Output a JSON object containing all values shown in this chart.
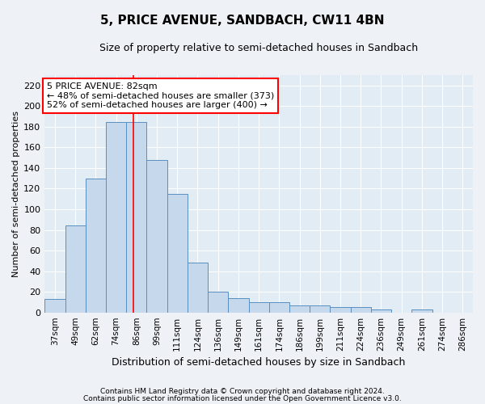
{
  "title": "5, PRICE AVENUE, SANDBACH, CW11 4BN",
  "subtitle": "Size of property relative to semi-detached houses in Sandbach",
  "xlabel": "Distribution of semi-detached houses by size in Sandbach",
  "ylabel": "Number of semi-detached properties",
  "categories": [
    "37sqm",
    "49sqm",
    "62sqm",
    "74sqm",
    "86sqm",
    "99sqm",
    "111sqm",
    "124sqm",
    "136sqm",
    "149sqm",
    "161sqm",
    "174sqm",
    "186sqm",
    "199sqm",
    "211sqm",
    "224sqm",
    "236sqm",
    "249sqm",
    "261sqm",
    "274sqm",
    "286sqm"
  ],
  "values": [
    13,
    84,
    130,
    185,
    185,
    148,
    115,
    48,
    20,
    14,
    10,
    10,
    7,
    7,
    5,
    5,
    3,
    0,
    3,
    0,
    0
  ],
  "bar_color": "#c5d8ec",
  "bar_edge_color": "#5a8fc0",
  "property_line_index": 4,
  "annotation_text": "5 PRICE AVENUE: 82sqm\n← 48% of semi-detached houses are smaller (373)\n52% of semi-detached houses are larger (400) →",
  "ylim": [
    0,
    230
  ],
  "yticks": [
    0,
    20,
    40,
    60,
    80,
    100,
    120,
    140,
    160,
    180,
    200,
    220
  ],
  "footer1": "Contains HM Land Registry data © Crown copyright and database right 2024.",
  "footer2": "Contains public sector information licensed under the Open Government Licence v3.0.",
  "bg_color": "#eef2f7",
  "plot_bg_color": "#e2ecf5",
  "grid_color": "#ffffff",
  "title_fontsize": 11,
  "subtitle_fontsize": 9,
  "ylabel_fontsize": 8,
  "xlabel_fontsize": 9,
  "tick_fontsize": 8,
  "xtick_fontsize": 7.5,
  "annotation_fontsize": 8,
  "footer_fontsize": 6.5
}
